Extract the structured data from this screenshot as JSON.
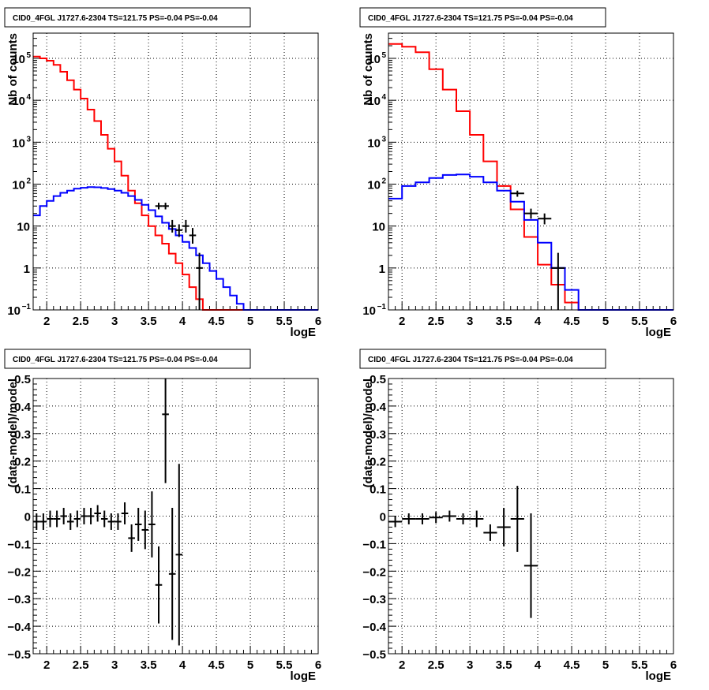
{
  "chart_data": [
    {
      "type": "line",
      "title": "CID0_4FGL J1727.6-2304 TS=121.75 PS=-0.04 PS=-0.04",
      "xlabel": "logE",
      "ylabel": "Nb of counts",
      "xlim": [
        1.8,
        6.0
      ],
      "ylim": [
        0.1,
        400000
      ],
      "yscale": "log",
      "grid": true,
      "xticks": [
        "2",
        "2.5",
        "3",
        "3.5",
        "4",
        "4.5",
        "5",
        "5.5",
        "6"
      ],
      "yticks": [
        {
          "v": 0.1,
          "label": "10",
          "exp": "−1"
        },
        {
          "v": 1,
          "label": "1",
          "exp": ""
        },
        {
          "v": 10,
          "label": "10",
          "exp": ""
        },
        {
          "v": 100,
          "label": "10",
          "exp": "2"
        },
        {
          "v": 1000,
          "label": "10",
          "exp": "3"
        },
        {
          "v": 10000,
          "label": "10",
          "exp": "4"
        },
        {
          "v": 100000,
          "label": "10",
          "exp": "5"
        }
      ],
      "bin_width": 0.1,
      "series": [
        {
          "color": "#ff0000",
          "values": [
            110000,
            100000,
            88000,
            70000,
            48000,
            30000,
            18000,
            11000,
            6000,
            3200,
            1500,
            700,
            350,
            160,
            70,
            35,
            18,
            10,
            6,
            3.8,
            2.2,
            1.3,
            0.7,
            0.35,
            0.18,
            0.1,
            0.1,
            0.1,
            0.1,
            0.1,
            0.1,
            0.1,
            0.1,
            0.1,
            0.1,
            0.1,
            0.1,
            0.1,
            0.1,
            0.1,
            0.1,
            0.1
          ]
        },
        {
          "color": "#0000ff",
          "values": [
            18,
            30,
            40,
            52,
            62,
            70,
            78,
            82,
            85,
            84,
            81,
            76,
            70,
            62,
            52,
            42,
            32,
            24,
            17,
            12,
            8.5,
            6,
            4.2,
            3,
            2,
            1.3,
            0.85,
            0.55,
            0.35,
            0.22,
            0.14,
            0.1,
            0.1,
            0.1,
            0.1,
            0.1,
            0.1,
            0.1,
            0.1,
            0.1,
            0.1,
            0.1
          ]
        }
      ],
      "data_points": [
        {
          "x": 3.65,
          "y": 30,
          "xerr": 0.05,
          "ylo": 25,
          "yhi": 36
        },
        {
          "x": 3.75,
          "y": 30,
          "xerr": 0.05,
          "ylo": 25,
          "yhi": 36
        },
        {
          "x": 3.85,
          "y": 10,
          "xerr": 0.05,
          "ylo": 7,
          "yhi": 14
        },
        {
          "x": 3.95,
          "y": 8,
          "xerr": 0.05,
          "ylo": 5.5,
          "yhi": 11
        },
        {
          "x": 4.05,
          "y": 10,
          "xerr": 0.05,
          "ylo": 7,
          "yhi": 14
        },
        {
          "x": 4.15,
          "y": 6,
          "xerr": 0.05,
          "ylo": 3.8,
          "yhi": 9
        },
        {
          "x": 4.25,
          "y": 1,
          "xerr": 0.05,
          "ylo": 0.1,
          "yhi": 2.3
        }
      ]
    },
    {
      "type": "line",
      "title": "CID0_4FGL J1727.6-2304 TS=121.75 PS=-0.04 PS=-0.04",
      "xlabel": "logE",
      "ylabel": "Nb of counts",
      "xlim": [
        1.8,
        6.0
      ],
      "ylim": [
        0.1,
        400000
      ],
      "yscale": "log",
      "grid": true,
      "xticks": [
        "2",
        "2.5",
        "3",
        "3.5",
        "4",
        "4.5",
        "5",
        "5.5",
        "6"
      ],
      "yticks": [
        {
          "v": 0.1,
          "label": "10",
          "exp": "−1"
        },
        {
          "v": 1,
          "label": "1",
          "exp": ""
        },
        {
          "v": 10,
          "label": "10",
          "exp": ""
        },
        {
          "v": 100,
          "label": "10",
          "exp": "2"
        },
        {
          "v": 1000,
          "label": "10",
          "exp": "3"
        },
        {
          "v": 10000,
          "label": "10",
          "exp": "4"
        },
        {
          "v": 100000,
          "label": "10",
          "exp": "5"
        }
      ],
      "bin_width": 0.2,
      "series": [
        {
          "color": "#ff0000",
          "values": [
            220000,
            190000,
            140000,
            55000,
            18000,
            5500,
            1500,
            350,
            90,
            25,
            5.5,
            1.2,
            0.4,
            0.15,
            0.1,
            0.1,
            0.1,
            0.1,
            0.1,
            0.1,
            0.1
          ]
        },
        {
          "color": "#0000ff",
          "values": [
            45,
            90,
            110,
            140,
            165,
            170,
            150,
            110,
            70,
            38,
            14,
            4,
            1,
            0.3,
            0.1,
            0.1,
            0.1,
            0.1,
            0.1,
            0.1,
            0.1
          ]
        }
      ],
      "data_points": [
        {
          "x": 3.7,
          "y": 60,
          "xerr": 0.1,
          "ylo": 50,
          "yhi": 70
        },
        {
          "x": 3.9,
          "y": 20,
          "xerr": 0.1,
          "ylo": 15,
          "yhi": 26
        },
        {
          "x": 4.1,
          "y": 15,
          "xerr": 0.1,
          "ylo": 11,
          "yhi": 20
        },
        {
          "x": 4.3,
          "y": 1,
          "xerr": 0.1,
          "ylo": 0.1,
          "yhi": 2.3
        }
      ]
    },
    {
      "type": "scatter",
      "title": "CID0_4FGL J1727.6-2304 TS=121.75 PS=-0.04 PS=-0.04",
      "xlabel": "logE",
      "ylabel": "(data-model)/model",
      "xlim": [
        1.8,
        6.0
      ],
      "ylim": [
        -0.5,
        0.5
      ],
      "grid": true,
      "xticks": [
        "2",
        "2.5",
        "3",
        "3.5",
        "4",
        "4.5",
        "5",
        "5.5",
        "6"
      ],
      "yticks": [
        "−0.5",
        "−0.4",
        "−0.3",
        "−0.2",
        "−0.1",
        "0",
        "0.1",
        "0.2",
        "0.3",
        "0.4",
        "0.5"
      ],
      "points": [
        {
          "x": 1.85,
          "y": -0.02,
          "xerr": 0.05,
          "yerr": 0.03
        },
        {
          "x": 1.95,
          "y": -0.02,
          "xerr": 0.05,
          "yerr": 0.03
        },
        {
          "x": 2.05,
          "y": -0.01,
          "xerr": 0.05,
          "yerr": 0.03
        },
        {
          "x": 2.15,
          "y": -0.01,
          "xerr": 0.05,
          "yerr": 0.03
        },
        {
          "x": 2.25,
          "y": 0.0,
          "xerr": 0.05,
          "yerr": 0.03
        },
        {
          "x": 2.35,
          "y": -0.02,
          "xerr": 0.05,
          "yerr": 0.03
        },
        {
          "x": 2.45,
          "y": -0.01,
          "xerr": 0.05,
          "yerr": 0.03
        },
        {
          "x": 2.55,
          "y": 0.0,
          "xerr": 0.05,
          "yerr": 0.03
        },
        {
          "x": 2.65,
          "y": 0.0,
          "xerr": 0.05,
          "yerr": 0.03
        },
        {
          "x": 2.75,
          "y": 0.01,
          "xerr": 0.05,
          "yerr": 0.03
        },
        {
          "x": 2.85,
          "y": -0.01,
          "xerr": 0.05,
          "yerr": 0.03
        },
        {
          "x": 2.95,
          "y": -0.02,
          "xerr": 0.05,
          "yerr": 0.03
        },
        {
          "x": 3.05,
          "y": -0.02,
          "xerr": 0.05,
          "yerr": 0.03
        },
        {
          "x": 3.15,
          "y": 0.01,
          "xerr": 0.05,
          "yerr": 0.04
        },
        {
          "x": 3.25,
          "y": -0.08,
          "xerr": 0.05,
          "yerr": 0.05
        },
        {
          "x": 3.35,
          "y": -0.03,
          "xerr": 0.05,
          "yerr": 0.06
        },
        {
          "x": 3.45,
          "y": -0.05,
          "xerr": 0.05,
          "yerr": 0.07
        },
        {
          "x": 3.55,
          "y": -0.03,
          "xerr": 0.05,
          "yerr": 0.12
        },
        {
          "x": 3.65,
          "y": -0.25,
          "xerr": 0.05,
          "yerr": 0.14
        },
        {
          "x": 3.75,
          "y": 0.37,
          "xerr": 0.05,
          "yerr": 0.25
        },
        {
          "x": 3.85,
          "y": -0.21,
          "xerr": 0.05,
          "yerr": 0.24
        },
        {
          "x": 3.95,
          "y": -0.14,
          "xerr": 0.05,
          "yerr": 0.33
        }
      ]
    },
    {
      "type": "scatter",
      "title": "CID0_4FGL J1727.6-2304 TS=121.75 PS=-0.04 PS=-0.04",
      "xlabel": "logE",
      "ylabel": "(data-model)/model",
      "xlim": [
        1.8,
        6.0
      ],
      "ylim": [
        -0.5,
        0.5
      ],
      "grid": true,
      "xticks": [
        "2",
        "2.5",
        "3",
        "3.5",
        "4",
        "4.5",
        "5",
        "5.5",
        "6"
      ],
      "yticks": [
        "−0.5",
        "−0.4",
        "−0.3",
        "−0.2",
        "−0.1",
        "0",
        "0.1",
        "0.2",
        "0.3",
        "0.4",
        "0.5"
      ],
      "points": [
        {
          "x": 1.9,
          "y": -0.02,
          "xerr": 0.1,
          "yerr": 0.02
        },
        {
          "x": 2.1,
          "y": -0.01,
          "xerr": 0.1,
          "yerr": 0.02
        },
        {
          "x": 2.3,
          "y": -0.01,
          "xerr": 0.1,
          "yerr": 0.02
        },
        {
          "x": 2.5,
          "y": -0.005,
          "xerr": 0.1,
          "yerr": 0.02
        },
        {
          "x": 2.7,
          "y": 0.0,
          "xerr": 0.1,
          "yerr": 0.02
        },
        {
          "x": 2.9,
          "y": -0.01,
          "xerr": 0.1,
          "yerr": 0.02
        },
        {
          "x": 3.1,
          "y": -0.01,
          "xerr": 0.1,
          "yerr": 0.03
        },
        {
          "x": 3.3,
          "y": -0.06,
          "xerr": 0.1,
          "yerr": 0.03
        },
        {
          "x": 3.5,
          "y": -0.04,
          "xerr": 0.1,
          "yerr": 0.07
        },
        {
          "x": 3.7,
          "y": -0.01,
          "xerr": 0.1,
          "yerr": 0.12
        },
        {
          "x": 3.9,
          "y": -0.18,
          "xerr": 0.1,
          "yerr": 0.19
        }
      ]
    }
  ]
}
